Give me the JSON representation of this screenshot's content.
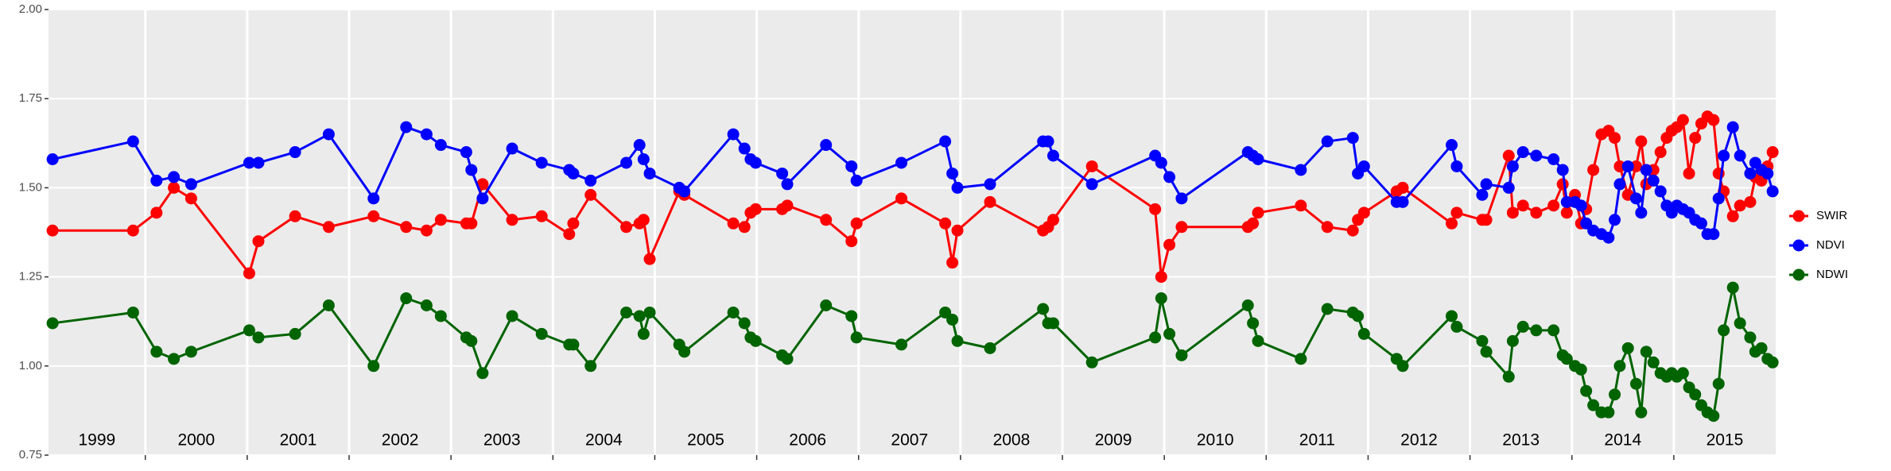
{
  "chart_data": {
    "type": "line",
    "x": [
      1999.09,
      1999.88,
      2000.11,
      2000.28,
      2000.45,
      2001.02,
      2001.11,
      2001.47,
      2001.8,
      2002.24,
      2002.56,
      2002.76,
      2002.9,
      2003.15,
      2003.2,
      2003.31,
      2003.6,
      2003.89,
      2004.16,
      2004.2,
      2004.37,
      2004.72,
      2004.85,
      2004.89,
      2004.95,
      2005.24,
      2005.29,
      2005.77,
      2005.88,
      2005.94,
      2005.99,
      2006.25,
      2006.3,
      2006.68,
      2006.93,
      2006.98,
      2007.42,
      2007.85,
      2007.92,
      2007.97,
      2008.29,
      2008.81,
      2008.86,
      2008.91,
      2009.29,
      2009.91,
      2009.97,
      2010.05,
      2010.17,
      2010.82,
      2010.87,
      2010.92,
      2011.34,
      2011.6,
      2011.85,
      2011.9,
      2011.96,
      2012.28,
      2012.34,
      2012.82,
      2012.87,
      2013.12,
      2013.16,
      2013.38,
      2013.42,
      2013.52,
      2013.65,
      2013.82,
      2013.91,
      2013.95,
      2014.03,
      2014.09,
      2014.14,
      2014.21,
      2014.29,
      2014.36,
      2014.42,
      2014.47,
      2014.55,
      2014.63,
      2014.68,
      2014.73,
      2014.8,
      2014.87,
      2014.93,
      2014.98,
      2015.03,
      2015.09,
      2015.15,
      2015.21,
      2015.27,
      2015.33,
      2015.39,
      2015.44,
      2015.49,
      2015.58,
      2015.65,
      2015.75,
      2015.8,
      2015.86,
      2015.92,
      2015.97
    ],
    "series": [
      {
        "name": "SWIR",
        "color": "#ff0000",
        "values": [
          1.38,
          1.38,
          1.43,
          1.5,
          1.47,
          1.26,
          1.35,
          1.42,
          1.39,
          1.42,
          1.39,
          1.38,
          1.41,
          1.4,
          1.4,
          1.51,
          1.41,
          1.42,
          1.37,
          1.4,
          1.48,
          1.39,
          1.4,
          1.41,
          1.3,
          1.49,
          1.48,
          1.4,
          1.39,
          1.43,
          1.44,
          1.44,
          1.45,
          1.41,
          1.35,
          1.4,
          1.47,
          1.4,
          1.29,
          1.38,
          1.46,
          1.38,
          1.39,
          1.41,
          1.56,
          1.44,
          1.25,
          1.34,
          1.39,
          1.39,
          1.4,
          1.43,
          1.45,
          1.39,
          1.38,
          1.41,
          1.43,
          1.49,
          1.5,
          1.4,
          1.43,
          1.41,
          1.41,
          1.59,
          1.43,
          1.45,
          1.43,
          1.45,
          1.51,
          1.43,
          1.48,
          1.4,
          1.44,
          1.55,
          1.65,
          1.66,
          1.64,
          1.56,
          1.48,
          1.56,
          1.63,
          1.51,
          1.55,
          1.6,
          1.64,
          1.66,
          1.67,
          1.69,
          1.54,
          1.64,
          1.68,
          1.7,
          1.69,
          1.54,
          1.49,
          1.42,
          1.45,
          1.46,
          1.53,
          1.52,
          1.56,
          1.6
        ]
      },
      {
        "name": "NDVI",
        "color": "#0000ff",
        "values": [
          1.58,
          1.63,
          1.52,
          1.53,
          1.51,
          1.57,
          1.57,
          1.6,
          1.65,
          1.47,
          1.67,
          1.65,
          1.62,
          1.6,
          1.55,
          1.47,
          1.61,
          1.57,
          1.55,
          1.54,
          1.52,
          1.57,
          1.62,
          1.58,
          1.54,
          1.5,
          1.49,
          1.65,
          1.61,
          1.58,
          1.57,
          1.54,
          1.51,
          1.62,
          1.56,
          1.52,
          1.57,
          1.63,
          1.54,
          1.5,
          1.51,
          1.63,
          1.63,
          1.59,
          1.51,
          1.59,
          1.57,
          1.53,
          1.47,
          1.6,
          1.59,
          1.58,
          1.55,
          1.63,
          1.64,
          1.54,
          1.56,
          1.46,
          1.46,
          1.62,
          1.56,
          1.48,
          1.51,
          1.5,
          1.56,
          1.6,
          1.59,
          1.58,
          1.55,
          1.46,
          1.46,
          1.45,
          1.4,
          1.38,
          1.37,
          1.36,
          1.41,
          1.51,
          1.56,
          1.47,
          1.43,
          1.55,
          1.52,
          1.49,
          1.45,
          1.43,
          1.45,
          1.44,
          1.43,
          1.41,
          1.4,
          1.37,
          1.37,
          1.47,
          1.59,
          1.67,
          1.59,
          1.54,
          1.57,
          1.55,
          1.54,
          1.49
        ]
      },
      {
        "name": "NDWI",
        "color": "#006400",
        "values": [
          1.12,
          1.15,
          1.04,
          1.02,
          1.04,
          1.1,
          1.08,
          1.09,
          1.17,
          1.0,
          1.19,
          1.17,
          1.14,
          1.08,
          1.07,
          0.98,
          1.14,
          1.09,
          1.06,
          1.06,
          1.0,
          1.15,
          1.14,
          1.09,
          1.15,
          1.06,
          1.04,
          1.15,
          1.12,
          1.08,
          1.07,
          1.03,
          1.02,
          1.17,
          1.14,
          1.08,
          1.06,
          1.15,
          1.13,
          1.07,
          1.05,
          1.16,
          1.12,
          1.12,
          1.01,
          1.08,
          1.19,
          1.09,
          1.03,
          1.17,
          1.12,
          1.07,
          1.02,
          1.16,
          1.15,
          1.14,
          1.09,
          1.02,
          1.0,
          1.14,
          1.11,
          1.07,
          1.04,
          0.97,
          1.07,
          1.11,
          1.1,
          1.1,
          1.03,
          1.02,
          1.0,
          0.99,
          0.93,
          0.89,
          0.87,
          0.87,
          0.92,
          1.0,
          1.05,
          0.95,
          0.87,
          1.04,
          1.01,
          0.98,
          0.97,
          0.98,
          0.97,
          0.98,
          0.94,
          0.92,
          0.89,
          0.87,
          0.86,
          0.95,
          1.1,
          1.22,
          1.12,
          1.08,
          1.04,
          1.05,
          1.02,
          1.01
        ]
      }
    ],
    "xlim": [
      1999.05,
      2016.0
    ],
    "xticks": [
      2000,
      2001,
      2002,
      2003,
      2004,
      2005,
      2006,
      2007,
      2008,
      2009,
      2010,
      2011,
      2012,
      2013,
      2014,
      2015
    ],
    "year_labels": [
      "1999",
      "2000",
      "2001",
      "2002",
      "2003",
      "2004",
      "2005",
      "2006",
      "2007",
      "2008",
      "2009",
      "2010",
      "2011",
      "2012",
      "2013",
      "2014",
      "2015"
    ],
    "ylim": [
      0.75,
      2.0
    ],
    "yticks": [
      0.75,
      {
        "value": 1.0,
        "label": "1.00"
      },
      1.25,
      {
        "value": 1.5,
        "label": "1.50"
      },
      1.75,
      {
        "value": 2.0,
        "label": "2.00"
      }
    ],
    "grid": true,
    "legend": "right"
  }
}
